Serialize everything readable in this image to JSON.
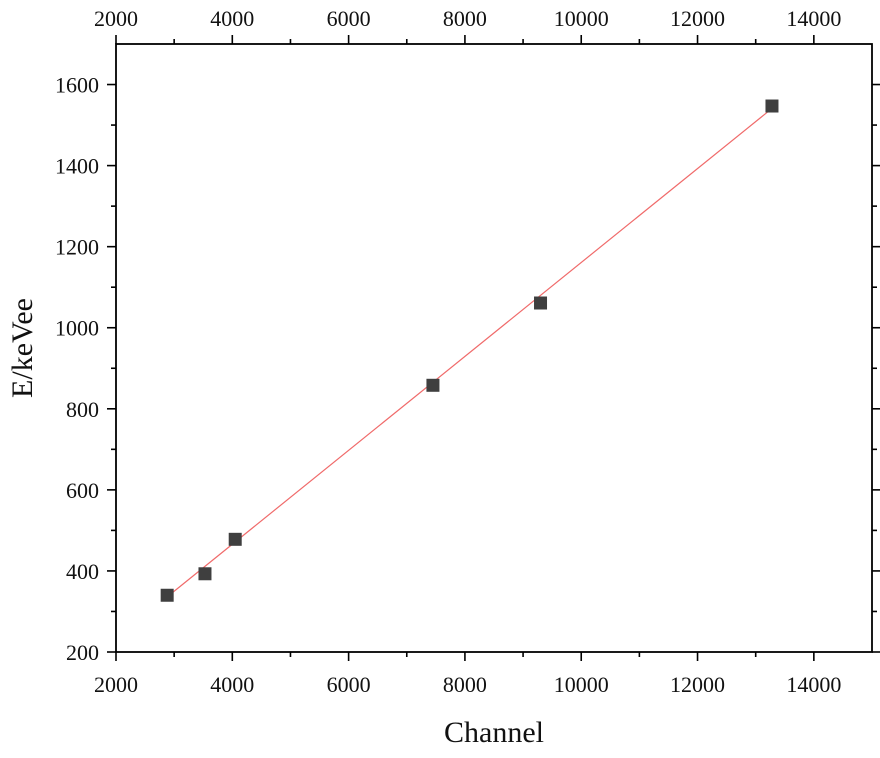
{
  "chart_data": {
    "type": "scatter",
    "title": "",
    "xlabel": "Channel",
    "ylabel": "E/keVee",
    "xlim": [
      2000,
      15000
    ],
    "ylim": [
      200,
      1700
    ],
    "xticks": [
      2000,
      4000,
      6000,
      8000,
      10000,
      12000,
      14000
    ],
    "xtick_labels": [
      "2000",
      "4000",
      "6000",
      "8000",
      "10000",
      "12000",
      "14000"
    ],
    "yticks": [
      200,
      400,
      600,
      800,
      1000,
      1200,
      1400,
      1600
    ],
    "ytick_labels": [
      "200",
      "400",
      "600",
      "800",
      "1000",
      "1200",
      "1400",
      "1600"
    ],
    "top_axis_mirrors_bottom": true,
    "grid": false,
    "legend": "none",
    "series": [
      {
        "kind": "points",
        "marker": "square",
        "color": "#3f3f3f",
        "x": [
          2880,
          3530,
          4050,
          7450,
          9300,
          13280
        ],
        "y": [
          340,
          393,
          478,
          858,
          1061,
          1547
        ]
      },
      {
        "kind": "linear-fit",
        "color": "#f06a6a",
        "x": [
          2880,
          13280
        ],
        "y": [
          336,
          1541
        ]
      }
    ]
  }
}
